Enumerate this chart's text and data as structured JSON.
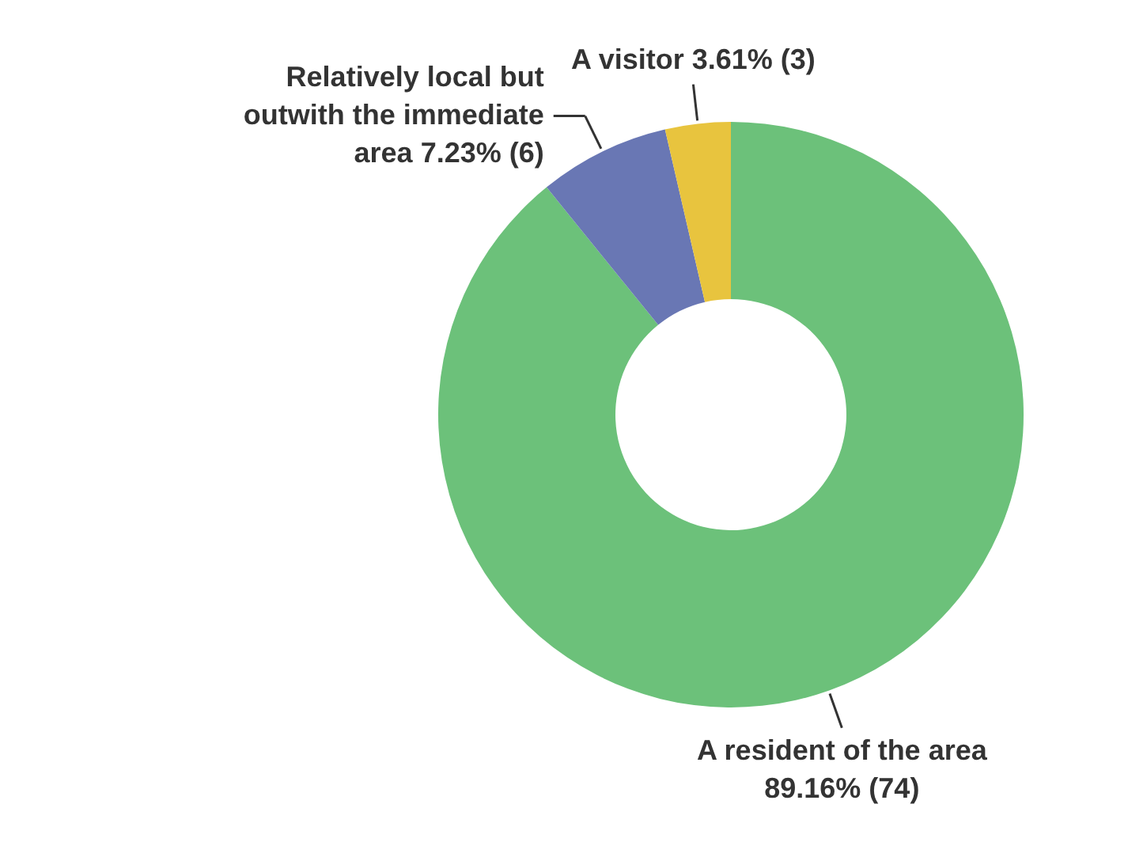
{
  "chart_data": {
    "type": "donut",
    "categories": [
      "A resident of the area",
      "Relatively local but outwith the immediate area",
      "A visitor"
    ],
    "values": [
      74,
      6,
      3
    ],
    "value_labels": [
      "89.16% (74)",
      "7.23% (6)",
      "3.61% (3)"
    ],
    "colors": [
      "#6cc17a",
      "#6977b4",
      "#e8c43e"
    ]
  }
}
